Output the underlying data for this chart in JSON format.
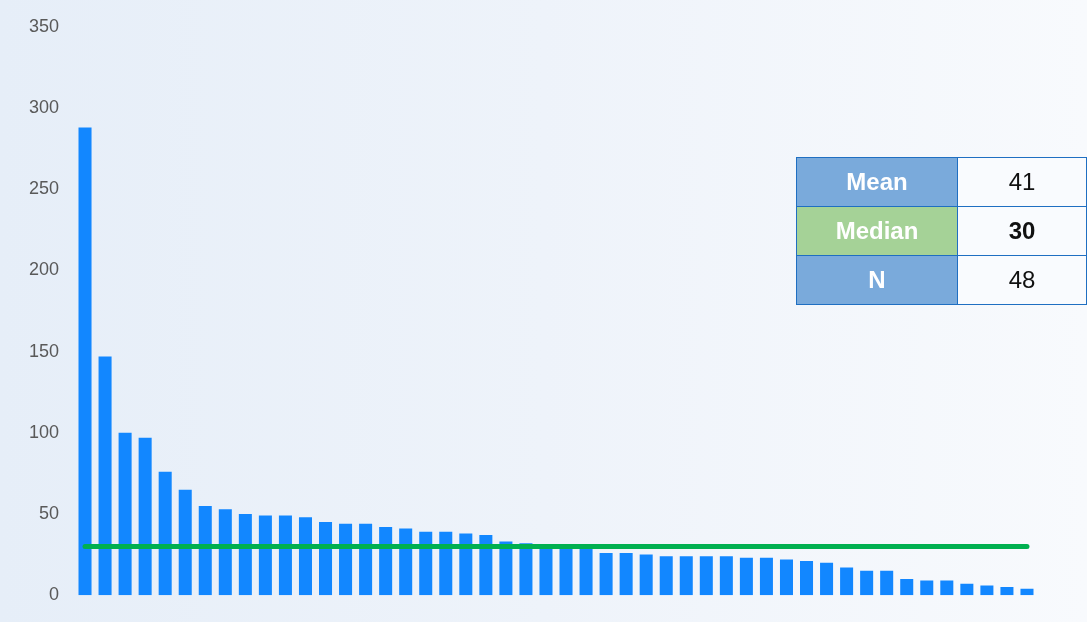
{
  "chart_data": {
    "type": "bar",
    "categories": [
      null,
      null,
      null,
      null,
      null,
      null,
      null,
      null,
      null,
      null,
      null,
      null,
      null,
      null,
      null,
      null,
      null,
      null,
      null,
      null,
      null,
      null,
      null,
      null,
      null,
      null,
      null,
      null,
      null,
      null,
      null,
      null,
      null,
      null,
      null,
      null,
      null,
      null,
      null,
      null,
      null,
      null,
      null,
      null,
      null,
      null,
      null,
      null
    ],
    "values": [
      288,
      147,
      100,
      97,
      76,
      65,
      55,
      53,
      50,
      49,
      49,
      48,
      45,
      44,
      44,
      42,
      41,
      39,
      39,
      38,
      37,
      33,
      32,
      30,
      30,
      29,
      26,
      26,
      25,
      24,
      24,
      24,
      24,
      23,
      23,
      22,
      21,
      20,
      17,
      15,
      15,
      10,
      9,
      9,
      7,
      6,
      5,
      4
    ],
    "color": "#1287ff",
    "ylim": [
      0,
      350
    ],
    "yticks": [
      0,
      50,
      100,
      150,
      200,
      250,
      300,
      350
    ],
    "tick_labels": "y",
    "ref_lines": [
      {
        "axis": "y",
        "value": 30,
        "color": "#00b050"
      }
    ],
    "annotations": [
      "Mean",
      "41",
      "Median",
      "30",
      "N",
      "48"
    ]
  }
}
